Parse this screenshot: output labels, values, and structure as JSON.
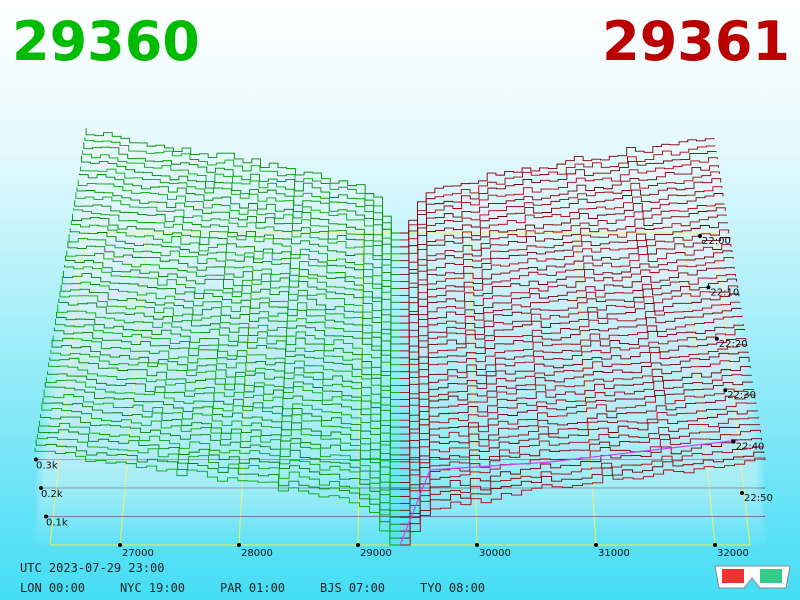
{
  "prices": {
    "bid": 29360,
    "ask": 29361
  },
  "price_axis": [
    27000,
    28000,
    29000,
    30000,
    31000,
    32000
  ],
  "depth_axis": [
    {
      "value": 300,
      "label": "0.3k"
    },
    {
      "value": 200,
      "label": "0.2k"
    },
    {
      "value": 100,
      "label": "0.1k"
    }
  ],
  "time_axis": [
    "22:00",
    "22:10",
    "22:20",
    "22:30",
    "22:40",
    "22:50"
  ],
  "timestamp": "UTC 2023-07-29 23:00",
  "clocks": [
    "LON 00:00",
    "NYC 19:00",
    "PAR 01:00",
    "BJS 07:00",
    "TYO 08:00"
  ]
}
